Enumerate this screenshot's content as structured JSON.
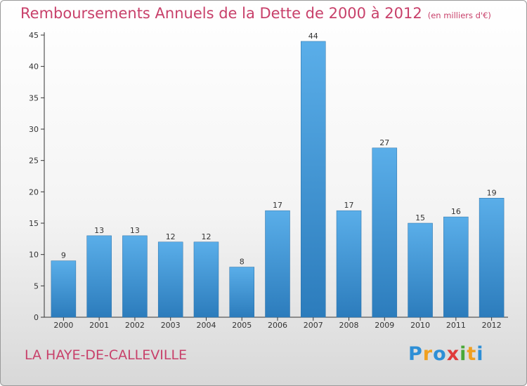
{
  "title": "Remboursements Annuels de la Dette de 2000 à 2012",
  "unit": "(en milliers d'€)",
  "commune": "LA HAYE-DE-CALLEVILLE",
  "logo": {
    "text": "Proxiti",
    "letters": [
      {
        "c": "P",
        "color": "#2e8fd6"
      },
      {
        "c": "r",
        "color": "#f0a020"
      },
      {
        "c": "o",
        "color": "#2e8fd6"
      },
      {
        "c": "x",
        "color": "#e03a3a"
      },
      {
        "c": "i",
        "color": "#4aa838"
      },
      {
        "c": "t",
        "color": "#f0a020"
      },
      {
        "c": "i",
        "color": "#2e8fd6"
      }
    ]
  },
  "colors": {
    "bar_top": "#5aaee9",
    "bar_bottom": "#2c7cbc",
    "accent": "#c8406a"
  },
  "chart_data": {
    "type": "bar",
    "title": "Remboursements Annuels de la Dette de 2000 à 2012",
    "categories": [
      "2000",
      "2001",
      "2002",
      "2003",
      "2004",
      "2005",
      "2006",
      "2007",
      "2008",
      "2009",
      "2010",
      "2011",
      "2012"
    ],
    "values": [
      9,
      13,
      13,
      12,
      12,
      8,
      17,
      44,
      17,
      27,
      15,
      16,
      19
    ],
    "ylim": [
      0,
      45
    ],
    "yticks": [
      0,
      5,
      10,
      15,
      20,
      25,
      30,
      35,
      40,
      45
    ],
    "grid": false,
    "data_labels": true
  }
}
